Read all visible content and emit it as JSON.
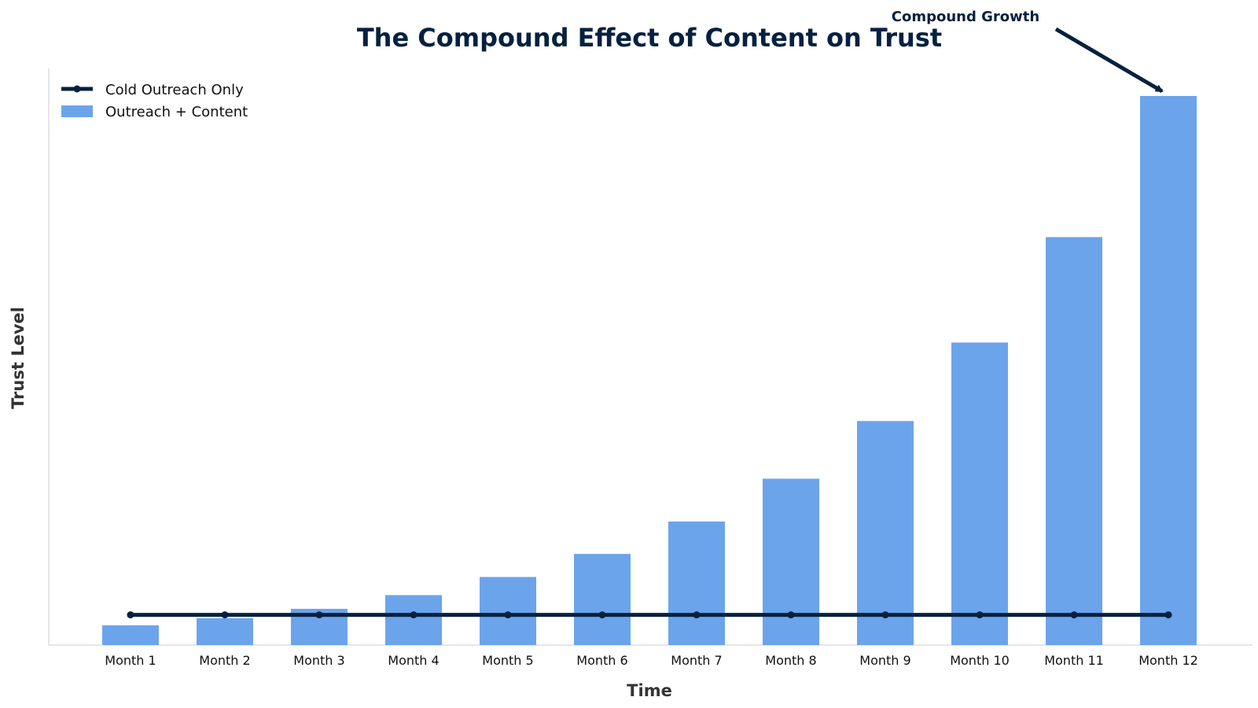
{
  "chart_data": {
    "type": "bar",
    "title": "The Compound Effect of Content on Trust",
    "xlabel": "Time",
    "ylabel": "Trust Level",
    "categories": [
      "Month 1",
      "Month 2",
      "Month 3",
      "Month 4",
      "Month 5",
      "Month 6",
      "Month 7",
      "Month 8",
      "Month 9",
      "Month 10",
      "Month 11",
      "Month 12"
    ],
    "ylim": [
      0,
      100
    ],
    "grid": false,
    "legend_position": "top-left",
    "series": [
      {
        "name": "Cold Outreach Only",
        "kind": "line",
        "values": [
          5.5,
          5.5,
          5.5,
          5.5,
          5.5,
          5.5,
          5.5,
          5.5,
          5.5,
          5.5,
          5.5,
          5.5
        ]
      },
      {
        "name": "Outreach + Content",
        "kind": "bar",
        "values": [
          3.6,
          4.9,
          6.6,
          9.1,
          12.4,
          16.6,
          22.5,
          30.3,
          40.8,
          55.1,
          74.3,
          100
        ]
      }
    ],
    "annotations": [
      {
        "text": "Compound Growth",
        "target_category": "Month 12"
      }
    ],
    "colors": {
      "bar": "#6ca4eb",
      "line": "#05213f",
      "title": "#05213f",
      "axis": "#cccccc"
    }
  }
}
